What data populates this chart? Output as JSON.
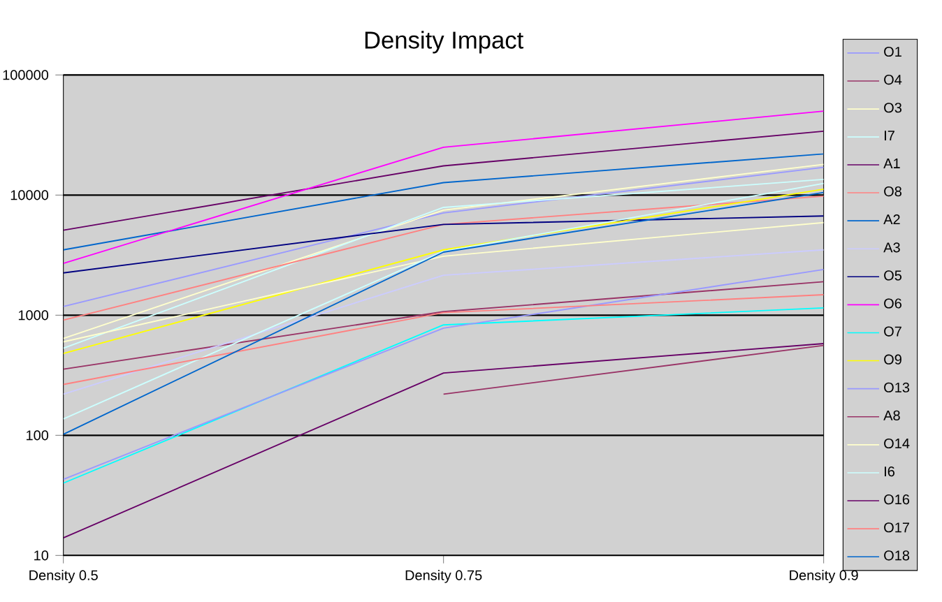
{
  "chart_data": {
    "type": "line",
    "title": "Density Impact",
    "categories": [
      "Density 0.5",
      "Density 0.75",
      "Density 0.9"
    ],
    "log": "y",
    "ylim": [
      10,
      100000
    ],
    "yticks": [
      10,
      100,
      1000,
      10000,
      100000
    ],
    "grid": "y",
    "legend": "right",
    "series": [
      {
        "name": "O1",
        "color": "#9999ff",
        "values": [
          1180,
          7100,
          17000
        ]
      },
      {
        "name": "O4",
        "color": "#993366",
        "values": [
          355,
          1070,
          1900
        ]
      },
      {
        "name": "O3",
        "color": "#ffffcc",
        "values": [
          640,
          7500,
          18000
        ]
      },
      {
        "name": "I7",
        "color": "#ccffff",
        "values": [
          530,
          7900,
          13500
        ]
      },
      {
        "name": "A1",
        "color": "#660066",
        "values": [
          5100,
          17500,
          34000
        ]
      },
      {
        "name": "O8",
        "color": "#ff8080",
        "values": [
          910,
          5700,
          9800
        ]
      },
      {
        "name": "A2",
        "color": "#0066cc",
        "values": [
          3500,
          12700,
          22000
        ]
      },
      {
        "name": "A3",
        "color": "#ccccff",
        "values": [
          220,
          2150,
          3500
        ]
      },
      {
        "name": "O5",
        "color": "#000080",
        "values": [
          2250,
          5700,
          6700
        ]
      },
      {
        "name": "O6",
        "color": "#ff00ff",
        "values": [
          2700,
          25000,
          50000
        ]
      },
      {
        "name": "O7",
        "color": "#00ffff",
        "values": [
          40,
          830,
          1150
        ]
      },
      {
        "name": "O9",
        "color": "#ffff00",
        "values": [
          480,
          3500,
          11200
        ]
      },
      {
        "name": "O13",
        "color": "#9999ff",
        "values": [
          43,
          780,
          2400
        ]
      },
      {
        "name": "A8",
        "color": "#993366",
        "values": [
          null,
          220,
          560
        ]
      },
      {
        "name": "O14",
        "color": "#ffffcc",
        "values": [
          600,
          3100,
          5900
        ]
      },
      {
        "name": "I6",
        "color": "#ccffff",
        "values": [
          137,
          3400,
          12500
        ]
      },
      {
        "name": "O16",
        "color": "#660066",
        "values": [
          14,
          330,
          580
        ]
      },
      {
        "name": "O17",
        "color": "#ff8080",
        "values": [
          265,
          1050,
          1480
        ]
      },
      {
        "name": "O18",
        "color": "#0066cc",
        "values": [
          102,
          3350,
          10500
        ]
      }
    ]
  }
}
